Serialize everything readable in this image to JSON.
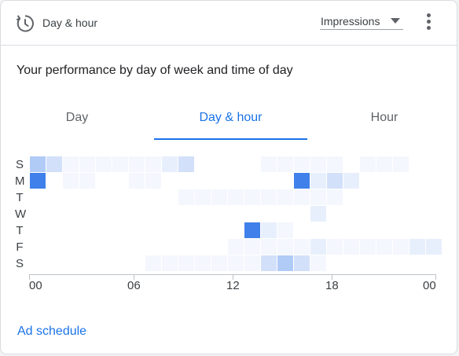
{
  "header": {
    "icon": "schedule-clock-icon",
    "title": "Day & hour",
    "metric_selector": "Impressions",
    "more_icon": "more-vert-icon"
  },
  "subtitle": "Your performance by day of week and time of day",
  "tabs": [
    {
      "label": "Day",
      "active": false
    },
    {
      "label": "Day & hour",
      "active": true
    },
    {
      "label": "Hour",
      "active": false
    }
  ],
  "heatmap": {
    "days": [
      "S",
      "M",
      "T",
      "W",
      "T",
      "F",
      "S"
    ],
    "x_tick_labels": [
      "00",
      "06",
      "12",
      "18",
      "00"
    ],
    "color_scale": [
      "#ffffff",
      "#f4f7fd",
      "#e8effc",
      "#d2e0fa",
      "#b1cbf7",
      "#3f80ea"
    ],
    "intensity_levels": [
      [
        4,
        3,
        1,
        1,
        1,
        1,
        1,
        1,
        2,
        3,
        0,
        0,
        0,
        0,
        1,
        1,
        1,
        1,
        1,
        0,
        1,
        1,
        1,
        0,
        0
      ],
      [
        5,
        0,
        1,
        1,
        0,
        0,
        1,
        1,
        0,
        0,
        0,
        0,
        0,
        0,
        0,
        0,
        5,
        2,
        3,
        2,
        0,
        0,
        0,
        0,
        0
      ],
      [
        0,
        0,
        0,
        0,
        0,
        0,
        0,
        0,
        0,
        1,
        1,
        1,
        1,
        1,
        1,
        1,
        1,
        1,
        1,
        0,
        0,
        0,
        0,
        0,
        0
      ],
      [
        0,
        0,
        0,
        0,
        0,
        0,
        0,
        0,
        0,
        0,
        0,
        0,
        0,
        0,
        0,
        0,
        0,
        2,
        0,
        0,
        0,
        0,
        0,
        0,
        0
      ],
      [
        0,
        0,
        0,
        0,
        0,
        0,
        0,
        0,
        0,
        0,
        0,
        0,
        0,
        5,
        2,
        1,
        0,
        0,
        0,
        0,
        0,
        0,
        0,
        0,
        0
      ],
      [
        0,
        0,
        0,
        0,
        0,
        0,
        0,
        0,
        0,
        0,
        0,
        0,
        1,
        1,
        1,
        1,
        1,
        2,
        1,
        1,
        1,
        1,
        1,
        2,
        2
      ],
      [
        0,
        0,
        0,
        0,
        0,
        0,
        0,
        1,
        1,
        1,
        1,
        1,
        1,
        1,
        3,
        4,
        3,
        1,
        0,
        0,
        0,
        0,
        0,
        0,
        0
      ]
    ]
  },
  "link": "Ad schedule"
}
